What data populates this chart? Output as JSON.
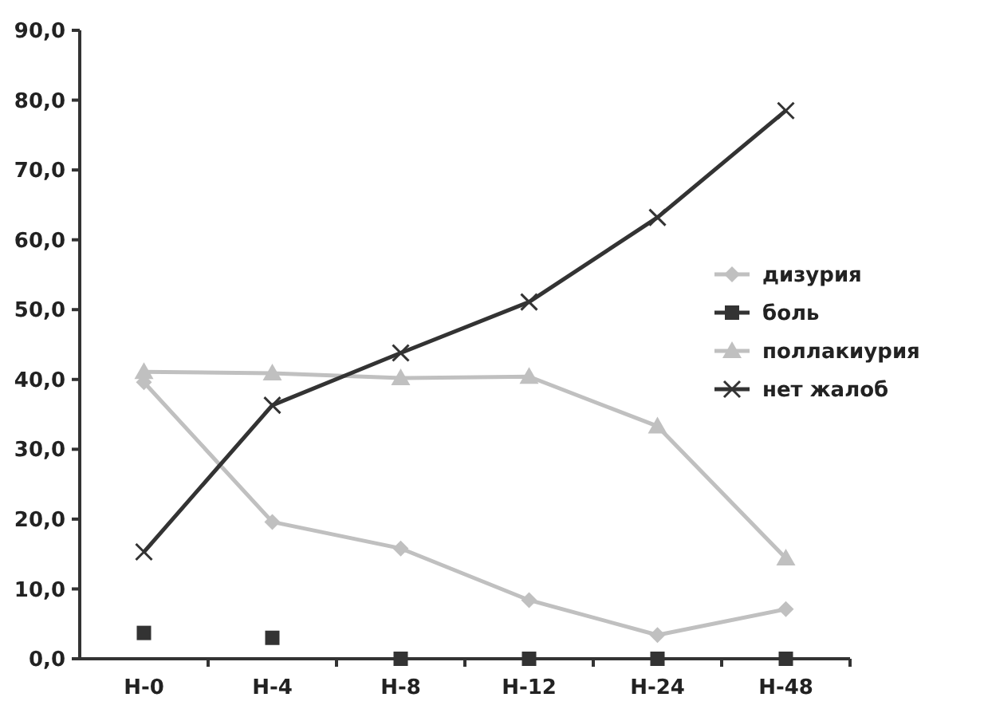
{
  "chart_data": {
    "type": "line",
    "categories": [
      "H-0",
      "H-4",
      "H-8",
      "H-12",
      "H-24",
      "H-48"
    ],
    "series": [
      {
        "name": "дизурия",
        "color": "#c0c0c0",
        "marker": "diamond",
        "values": [
          39.6,
          19.6,
          15.8,
          8.4,
          3.4,
          7.1
        ]
      },
      {
        "name": "боль",
        "type": "scatter",
        "color": "#333333",
        "marker": "square",
        "values": [
          3.7,
          3.0,
          0,
          0,
          0,
          0
        ]
      },
      {
        "name": "поллакиурия",
        "color": "#c0c0c0",
        "marker": "triangle",
        "values": [
          41.1,
          40.9,
          40.2,
          40.4,
          33.3,
          14.4
        ]
      },
      {
        "name": "нет жалоб",
        "color": "#333333",
        "marker": "cross",
        "values": [
          15.3,
          36.3,
          43.8,
          51.1,
          63.2,
          78.5
        ]
      }
    ],
    "ylim": [
      0,
      90
    ],
    "yticks": [
      {
        "value": 0,
        "label": "0,0"
      },
      {
        "value": 10,
        "label": "10,0"
      },
      {
        "value": 20,
        "label": "20,0"
      },
      {
        "value": 30,
        "label": "30,0"
      },
      {
        "value": 40,
        "label": "40,0"
      },
      {
        "value": 50,
        "label": "50,0"
      },
      {
        "value": 60,
        "label": "60,0"
      },
      {
        "value": 70,
        "label": "70,0"
      },
      {
        "value": 80,
        "label": "80,0"
      },
      {
        "value": 90,
        "label": "90,0"
      }
    ],
    "grid": false,
    "legend": "right"
  }
}
